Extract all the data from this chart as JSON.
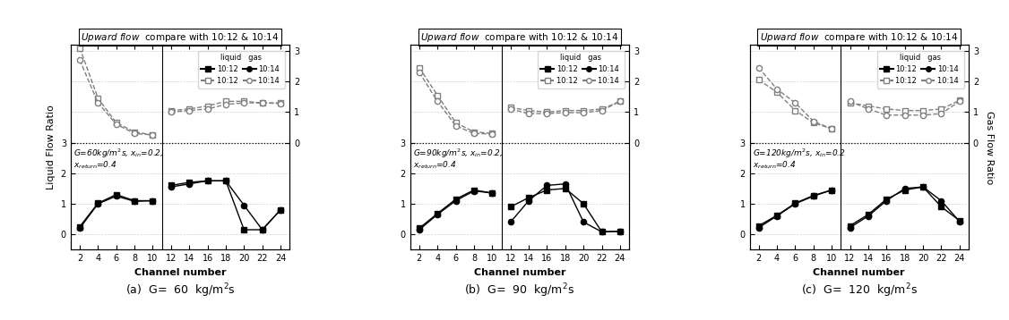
{
  "xlabel": "Channel number",
  "ylabel_left": "Liquid Flow Ratio",
  "ylabel_right": "Gas Flow Ratio",
  "x_left": [
    2,
    4,
    6,
    8,
    10
  ],
  "x_right": [
    12,
    14,
    16,
    18,
    20,
    22,
    24
  ],
  "panels": [
    {
      "caption": "(a)  G=  60  kg/m$^2$s",
      "annot1": "G=60kg/m$^2$s, $x_{in}$=0.2,",
      "annot2": "$x_{return}$=0.4",
      "liq_10_12_left": [
        0.25,
        1.02,
        1.3,
        1.1,
        1.1
      ],
      "liq_10_12_right": [
        1.6,
        1.7,
        1.75,
        1.75,
        0.15,
        0.15,
        0.8
      ],
      "liq_10_14_left": [
        0.2,
        1.0,
        1.25,
        1.08,
        1.1
      ],
      "liq_10_14_right": [
        1.55,
        1.65,
        1.75,
        1.75,
        0.95,
        0.15,
        0.8
      ],
      "gas_10_12_left": [
        3.1,
        1.45,
        0.65,
        0.35,
        0.25
      ],
      "gas_10_12_right": [
        1.05,
        1.1,
        1.2,
        1.35,
        1.35,
        1.3,
        1.3
      ],
      "gas_10_14_left": [
        2.7,
        1.3,
        0.6,
        0.3,
        0.25
      ],
      "gas_10_14_right": [
        1.0,
        1.05,
        1.1,
        1.25,
        1.3,
        1.3,
        1.28
      ]
    },
    {
      "caption": "(b)  G=  90  kg/m$^2$s",
      "annot1": "G=90kg/m$^2$s, $x_{in}$=0.2,",
      "annot2": "$x_{return}$=0.4",
      "liq_10_12_left": [
        0.2,
        0.68,
        1.15,
        1.45,
        1.35
      ],
      "liq_10_12_right": [
        0.9,
        1.2,
        1.45,
        1.5,
        1.0,
        0.08,
        0.1
      ],
      "liq_10_14_left": [
        0.15,
        0.65,
        1.1,
        1.42,
        1.35
      ],
      "liq_10_14_right": [
        0.4,
        1.1,
        1.6,
        1.65,
        0.4,
        0.08,
        0.1
      ],
      "gas_10_12_left": [
        2.45,
        1.55,
        0.65,
        0.35,
        0.3
      ],
      "gas_10_12_right": [
        1.15,
        1.05,
        1.0,
        1.05,
        1.05,
        1.1,
        1.35
      ],
      "gas_10_14_left": [
        2.3,
        1.35,
        0.55,
        0.3,
        0.28
      ],
      "gas_10_14_right": [
        1.1,
        0.95,
        0.95,
        0.98,
        0.98,
        1.05,
        1.35
      ]
    },
    {
      "caption": "(c)  G=  120  kg/m$^2$s",
      "annot1": "G=120kg/m$^2$s, $x_{in}$=0.2",
      "annot2": "$x_{return}$=0.4",
      "liq_10_12_left": [
        0.28,
        0.62,
        1.02,
        1.27,
        1.45
      ],
      "liq_10_12_right": [
        0.28,
        0.65,
        1.15,
        1.45,
        1.55,
        0.9,
        0.45
      ],
      "liq_10_14_left": [
        0.22,
        0.6,
        1.0,
        1.25,
        1.45
      ],
      "liq_10_14_right": [
        0.22,
        0.6,
        1.1,
        1.5,
        1.55,
        1.1,
        0.42
      ],
      "gas_10_12_left": [
        2.05,
        1.65,
        1.05,
        0.65,
        0.45
      ],
      "gas_10_12_right": [
        1.3,
        1.2,
        1.1,
        1.05,
        1.05,
        1.1,
        1.38
      ],
      "gas_10_14_left": [
        2.45,
        1.75,
        1.3,
        0.7,
        0.45
      ],
      "gas_10_14_right": [
        1.35,
        1.1,
        0.9,
        0.9,
        0.9,
        0.95,
        1.35
      ]
    }
  ]
}
